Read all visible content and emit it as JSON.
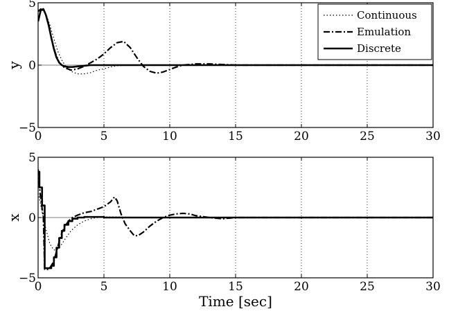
{
  "chart_data": [
    {
      "type": "line",
      "ylabel": "y",
      "xlim": [
        0,
        30
      ],
      "ylim": [
        -5,
        5
      ],
      "xticks": [
        "0",
        "5",
        "10",
        "15",
        "20",
        "25",
        "30"
      ],
      "yticks": [
        "5",
        "0",
        "−5"
      ],
      "grid": "vertical dotted",
      "legend_position": "top-right",
      "series": [
        {
          "name": "Continuous",
          "style": "dotted",
          "x": [
            0,
            0.3,
            0.6,
            0.9,
            1.2,
            1.5,
            1.8,
            2.1,
            2.5,
            3,
            3.5,
            4,
            4.5,
            5,
            5.5,
            6,
            7,
            8,
            9,
            10,
            12,
            15,
            20,
            30
          ],
          "y": [
            4.4,
            4.5,
            4.1,
            3.2,
            2.1,
            1.1,
            0.4,
            -0.1,
            -0.5,
            -0.7,
            -0.7,
            -0.6,
            -0.4,
            -0.3,
            -0.15,
            -0.05,
            0,
            0.02,
            0,
            0,
            0,
            0,
            0,
            0
          ]
        },
        {
          "name": "Emulation",
          "style": "dashdot",
          "x": [
            0,
            0.2,
            0.5,
            0.8,
            1.0,
            1.3,
            1.6,
            2.0,
            2.5,
            3.0,
            3.5,
            4.0,
            4.5,
            5.0,
            5.5,
            6.0,
            6.5,
            7.0,
            7.5,
            8.0,
            8.5,
            9.0,
            9.5,
            10.0,
            10.5,
            11.0,
            12.0,
            13.0,
            14.0,
            15.0,
            20.0,
            30.0
          ],
          "y": [
            4.3,
            4.5,
            4.3,
            3.3,
            2.2,
            1.0,
            0.2,
            -0.2,
            -0.4,
            -0.3,
            -0.1,
            0.2,
            0.5,
            0.9,
            1.4,
            1.8,
            1.9,
            1.4,
            0.6,
            -0.1,
            -0.5,
            -0.65,
            -0.55,
            -0.35,
            -0.15,
            0.0,
            0.1,
            0.1,
            0.05,
            0,
            0,
            0
          ]
        },
        {
          "name": "Discrete",
          "style": "solid",
          "x": [
            0,
            0.2,
            0.4,
            0.6,
            0.8,
            1.0,
            1.2,
            1.4,
            1.6,
            1.8,
            2.0,
            2.3,
            2.6,
            3.0,
            3.5,
            4.0,
            5.0,
            7.0,
            10.0,
            30.0
          ],
          "y": [
            3.5,
            4.4,
            4.5,
            4.0,
            3.2,
            2.2,
            1.3,
            0.6,
            0.2,
            0.0,
            -0.1,
            -0.15,
            -0.15,
            -0.1,
            -0.05,
            0,
            0,
            0,
            0,
            0
          ]
        }
      ]
    },
    {
      "type": "line",
      "xlabel": "Time [sec]",
      "ylabel": "x",
      "xlim": [
        0,
        30
      ],
      "ylim": [
        -5,
        5
      ],
      "xticks": [
        "0",
        "5",
        "10",
        "15",
        "20",
        "25",
        "30"
      ],
      "yticks": [
        "5",
        "0",
        "−5"
      ],
      "grid": "vertical dotted",
      "series": [
        {
          "name": "Continuous",
          "style": "dotted",
          "x": [
            0,
            0.1,
            0.3,
            0.6,
            0.9,
            1.2,
            1.5,
            1.8,
            2.1,
            2.5,
            3.0,
            3.5,
            4.0,
            4.5,
            5.0,
            6.0,
            8.0,
            10.0,
            30.0
          ],
          "y": [
            2.0,
            1.6,
            0.5,
            -1.0,
            -2.2,
            -2.7,
            -2.6,
            -2.2,
            -1.7,
            -1.1,
            -0.6,
            -0.3,
            -0.1,
            0.0,
            0.05,
            0.05,
            0,
            0,
            0
          ]
        },
        {
          "name": "Emulation",
          "style": "dashdot",
          "x": [
            0,
            0.15,
            0.4,
            0.5,
            0.8,
            1.0,
            1.2,
            1.4,
            1.6,
            1.8,
            2.0,
            2.3,
            2.6,
            3.0,
            3.5,
            4.0,
            4.5,
            5.0,
            5.5,
            5.8,
            6.0,
            6.3,
            6.6,
            7.0,
            7.3,
            7.6,
            8.0,
            8.5,
            9.0,
            9.5,
            10.0,
            10.5,
            11.0,
            11.5,
            12.0,
            13.0,
            14.0,
            15.0,
            20.0,
            30.0
          ],
          "y": [
            4.0,
            2.0,
            0.0,
            -4.3,
            -4.3,
            -4.0,
            -3.6,
            -2.8,
            -2.0,
            -1.3,
            -0.8,
            -0.3,
            0.0,
            0.2,
            0.4,
            0.5,
            0.7,
            0.9,
            1.3,
            1.7,
            1.4,
            0.3,
            -0.5,
            -1.1,
            -1.5,
            -1.5,
            -1.2,
            -0.7,
            -0.3,
            0.0,
            0.2,
            0.3,
            0.35,
            0.3,
            0.15,
            0.0,
            -0.1,
            0,
            0,
            0
          ]
        },
        {
          "name": "Discrete",
          "style": "solid",
          "x": [
            0,
            0.1,
            0.3,
            0.5,
            0.8,
            1.0,
            1.2,
            1.4,
            1.6,
            1.8,
            2.0,
            2.3,
            2.6,
            3.0,
            3.5,
            4.0,
            5.0,
            7.0,
            10.0,
            30.0
          ],
          "y": [
            3.8,
            2.5,
            1.0,
            -4.2,
            -4.2,
            -4.0,
            -3.3,
            -2.5,
            -1.7,
            -1.1,
            -0.6,
            -0.3,
            -0.1,
            0.0,
            0.05,
            0.05,
            0,
            0,
            0,
            0
          ],
          "step": true
        }
      ]
    }
  ]
}
